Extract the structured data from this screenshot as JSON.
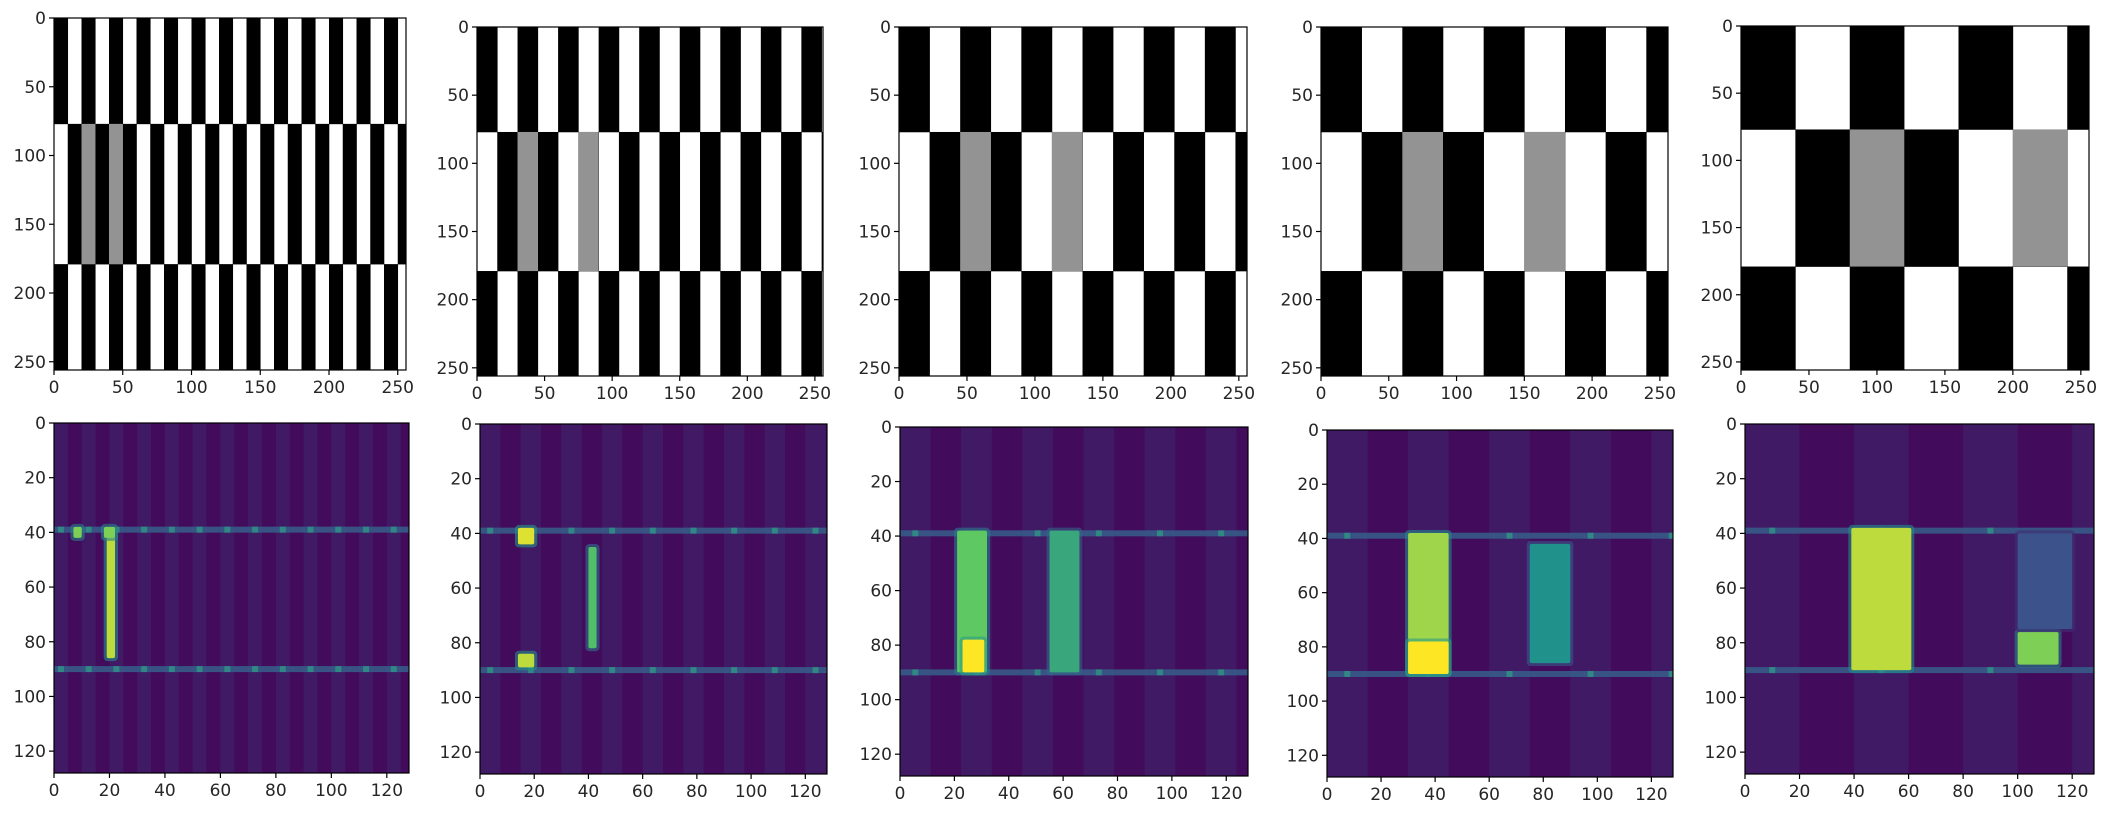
{
  "chart_data": [
    {
      "type": "heatmap",
      "colormap": "gray",
      "pattern": "checkerboard stripes with gray cells",
      "stripe_width": 10,
      "row_bands": [
        [
          0,
          77
        ],
        [
          77,
          179
        ],
        [
          179,
          256
        ]
      ],
      "gray_cells": [
        [
          20,
          30
        ],
        [
          40,
          50
        ]
      ],
      "xticks": [
        0,
        50,
        100,
        150,
        200,
        250
      ],
      "yticks": [
        0,
        50,
        100,
        150,
        200,
        250
      ],
      "xlim": [
        0,
        256
      ],
      "ylim": [
        256,
        0
      ]
    },
    {
      "type": "heatmap",
      "colormap": "gray",
      "pattern": "checkerboard stripes with gray cells",
      "stripe_width": 15,
      "row_bands": [
        [
          0,
          77
        ],
        [
          77,
          179
        ],
        [
          179,
          256
        ]
      ],
      "gray_cells": [
        [
          30,
          45
        ],
        [
          75,
          90
        ]
      ],
      "xticks": [
        0,
        50,
        100,
        150,
        200,
        250
      ],
      "yticks": [
        0,
        50,
        100,
        150,
        200,
        250
      ],
      "xlim": [
        0,
        256
      ],
      "ylim": [
        256,
        0
      ]
    },
    {
      "type": "heatmap",
      "colormap": "gray",
      "pattern": "checkerboard stripes with gray cells",
      "stripe_width": 22.5,
      "row_bands": [
        [
          0,
          77
        ],
        [
          77,
          179
        ],
        [
          179,
          256
        ]
      ],
      "gray_cells": [
        [
          45,
          67.5
        ],
        [
          112.5,
          135
        ]
      ],
      "xticks": [
        0,
        50,
        100,
        150,
        200,
        250
      ],
      "yticks": [
        0,
        50,
        100,
        150,
        200,
        250
      ],
      "xlim": [
        0,
        256
      ],
      "ylim": [
        256,
        0
      ]
    },
    {
      "type": "heatmap",
      "colormap": "gray",
      "pattern": "checkerboard stripes with gray cells",
      "stripe_width": 30,
      "row_bands": [
        [
          0,
          77
        ],
        [
          77,
          179
        ],
        [
          179,
          256
        ]
      ],
      "gray_cells": [
        [
          60,
          90
        ],
        [
          150,
          180
        ]
      ],
      "xticks": [
        0,
        50,
        100,
        150,
        200,
        250
      ],
      "yticks": [
        0,
        50,
        100,
        150,
        200,
        250
      ],
      "xlim": [
        0,
        256
      ],
      "ylim": [
        256,
        0
      ]
    },
    {
      "type": "heatmap",
      "colormap": "gray",
      "pattern": "checkerboard stripes with gray cells",
      "stripe_width": 40,
      "row_bands": [
        [
          0,
          77
        ],
        [
          77,
          179
        ],
        [
          179,
          256
        ]
      ],
      "gray_cells": [
        [
          80,
          120
        ],
        [
          200,
          240
        ]
      ],
      "xticks": [
        0,
        50,
        100,
        150,
        200,
        250
      ],
      "yticks": [
        0,
        50,
        100,
        150,
        200,
        250
      ],
      "xlim": [
        0,
        256
      ],
      "ylim": [
        256,
        0
      ]
    },
    {
      "type": "heatmap",
      "colormap": "viridis",
      "stripe_width": 5,
      "boundary_rows": [
        39,
        90
      ],
      "hotspots": [
        {
          "x": [
            19,
            22
          ],
          "y": [
            40,
            86
          ],
          "level": 0.9
        },
        {
          "x": [
            7,
            10
          ],
          "y": [
            38,
            42
          ],
          "level": 0.8
        },
        {
          "x": [
            18,
            22
          ],
          "y": [
            38,
            42
          ],
          "level": 0.8
        }
      ],
      "xticks": [
        0,
        20,
        40,
        60,
        80,
        100,
        120
      ],
      "yticks": [
        0,
        20,
        40,
        60,
        80,
        100,
        120
      ],
      "xlim": [
        0,
        128
      ],
      "ylim": [
        128,
        0
      ]
    },
    {
      "type": "heatmap",
      "colormap": "viridis",
      "stripe_width": 7.5,
      "boundary_rows": [
        39,
        90
      ],
      "hotspots": [
        {
          "x": [
            14,
            20
          ],
          "y": [
            38,
            44
          ],
          "level": 0.95
        },
        {
          "x": [
            14,
            20
          ],
          "y": [
            84,
            89
          ],
          "level": 0.9
        },
        {
          "x": [
            40,
            43
          ],
          "y": [
            45,
            82
          ],
          "level": 0.7
        }
      ],
      "xticks": [
        0,
        20,
        40,
        60,
        80,
        100,
        120
      ],
      "yticks": [
        0,
        20,
        40,
        60,
        80,
        100,
        120
      ],
      "xlim": [
        0,
        128
      ],
      "ylim": [
        128,
        0
      ]
    },
    {
      "type": "heatmap",
      "colormap": "viridis",
      "stripe_width": 11.25,
      "boundary_rows": [
        39,
        90
      ],
      "hotspots": [
        {
          "x": [
            21,
            32
          ],
          "y": [
            38,
            90
          ],
          "level": 0.75
        },
        {
          "x": [
            55,
            66
          ],
          "y": [
            38,
            90
          ],
          "level": 0.6
        },
        {
          "x": [
            23,
            31
          ],
          "y": [
            78,
            90
          ],
          "level": 1.0
        }
      ],
      "xticks": [
        0,
        20,
        40,
        60,
        80,
        100,
        120
      ],
      "yticks": [
        0,
        20,
        40,
        60,
        80,
        100,
        120
      ],
      "xlim": [
        0,
        128
      ],
      "ylim": [
        128,
        0
      ]
    },
    {
      "type": "heatmap",
      "colormap": "viridis",
      "stripe_width": 15,
      "boundary_rows": [
        39,
        90
      ],
      "hotspots": [
        {
          "x": [
            30,
            45
          ],
          "y": [
            38,
            90
          ],
          "level": 0.85
        },
        {
          "x": [
            30,
            45
          ],
          "y": [
            78,
            90
          ],
          "level": 1.0
        },
        {
          "x": [
            75,
            90
          ],
          "y": [
            42,
            86
          ],
          "level": 0.5
        }
      ],
      "xticks": [
        0,
        20,
        40,
        60,
        80,
        100,
        120
      ],
      "yticks": [
        0,
        20,
        40,
        60,
        80,
        100,
        120
      ],
      "xlim": [
        0,
        128
      ],
      "ylim": [
        128,
        0
      ]
    },
    {
      "type": "heatmap",
      "colormap": "viridis",
      "stripe_width": 20,
      "boundary_rows": [
        39,
        90
      ],
      "hotspots": [
        {
          "x": [
            39,
            61
          ],
          "y": [
            38,
            90
          ],
          "level": 0.9
        },
        {
          "x": [
            100,
            115
          ],
          "y": [
            76,
            88
          ],
          "level": 0.8
        },
        {
          "x": [
            100,
            120
          ],
          "y": [
            40,
            75
          ],
          "level": 0.25
        }
      ],
      "xticks": [
        0,
        20,
        40,
        60,
        80,
        100,
        120
      ],
      "yticks": [
        0,
        20,
        40,
        60,
        80,
        100,
        120
      ],
      "xlim": [
        0,
        128
      ],
      "ylim": [
        128,
        0
      ]
    }
  ]
}
